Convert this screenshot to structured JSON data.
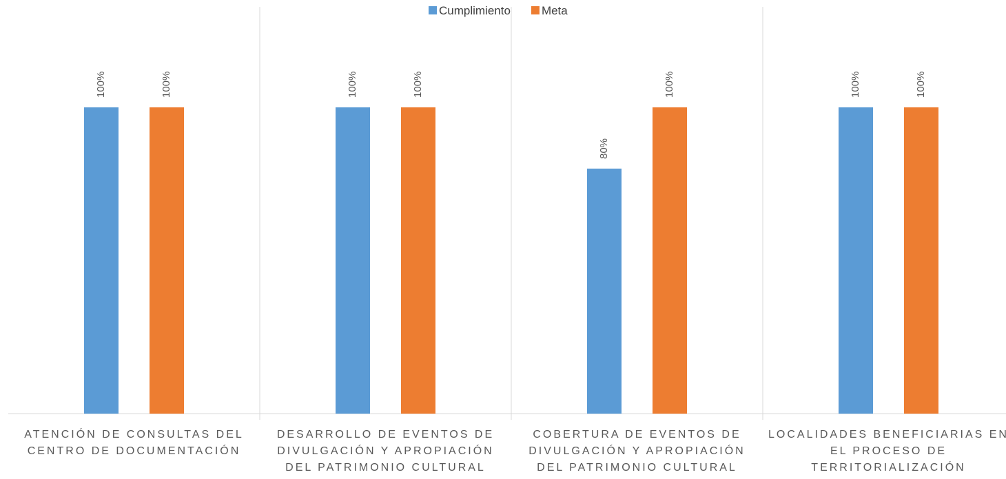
{
  "chart_data": {
    "type": "bar",
    "categories": [
      "ATENCIÓN DE CONSULTAS DEL CENTRO DE DOCUMENTACIÓN",
      "DESARROLLO DE EVENTOS DE DIVULGACIÓN Y APROPIACIÓN DEL PATRIMONIO CULTURAL",
      "COBERTURA DE EVENTOS DE DIVULGACIÓN Y APROPIACIÓN DEL PATRIMONIO CULTURAL",
      "LOCALIDADES BENEFICIARIAS EN EL PROCESO DE TERRITORIALIZACIÓN"
    ],
    "series": [
      {
        "name": "Cumplimiento",
        "color": "#5b9bd5",
        "values": [
          100,
          100,
          80,
          100
        ],
        "value_labels": [
          "100%",
          "100%",
          "80%",
          "100%"
        ]
      },
      {
        "name": "Meta",
        "color": "#ed7d31",
        "values": [
          100,
          100,
          100,
          100
        ],
        "value_labels": [
          "100%",
          "100%",
          "100%",
          "100%"
        ]
      }
    ],
    "ylim": [
      0,
      120
    ],
    "legend": "top"
  }
}
